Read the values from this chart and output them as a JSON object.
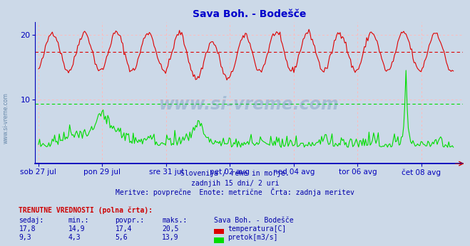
{
  "title": "Sava Boh. - Bodešče",
  "bg_color": "#ccd9e8",
  "plot_bg_color": "#ccd9e8",
  "temp_color": "#dd0000",
  "flow_color": "#00dd00",
  "temp_avg": 17.4,
  "flow_avg": 5.6,
  "flow_current_line": 9.3,
  "temp_current": 17.8,
  "temp_min": 14.9,
  "temp_max": 20.5,
  "flow_current": 9.3,
  "flow_min": 4.3,
  "flow_max": 13.9,
  "flow_povpr": 5.6,
  "temp_povpr": 17.4,
  "ymin": 0,
  "ymax": 22,
  "n_points": 360,
  "x_tick_labels": [
    "sob 27 jul",
    "pon 29 jul",
    "sre 31 jul",
    "pet 02 avg",
    "ned 04 avg",
    "tor 06 avg",
    "čet 08 avg"
  ],
  "subtitle1": "Slovenija / reke in morje.",
  "subtitle2": "zadnjih 15 dni/ 2 uri",
  "subtitle3": "Meritve: povprečne  Enote: metrične  Črta: zadnja meritev",
  "info_header": "TRENUTNE VREDNOSTI (polna črta):",
  "col_headers": [
    "sedaj:",
    "min.:",
    "povpr.:",
    "maks.:",
    "Sava Boh. - Bodešče"
  ],
  "watermark": "www.si-vreme.com",
  "grid_color": "#ffbbbb",
  "axis_color": "#0000bb",
  "text_color": "#0000aa"
}
